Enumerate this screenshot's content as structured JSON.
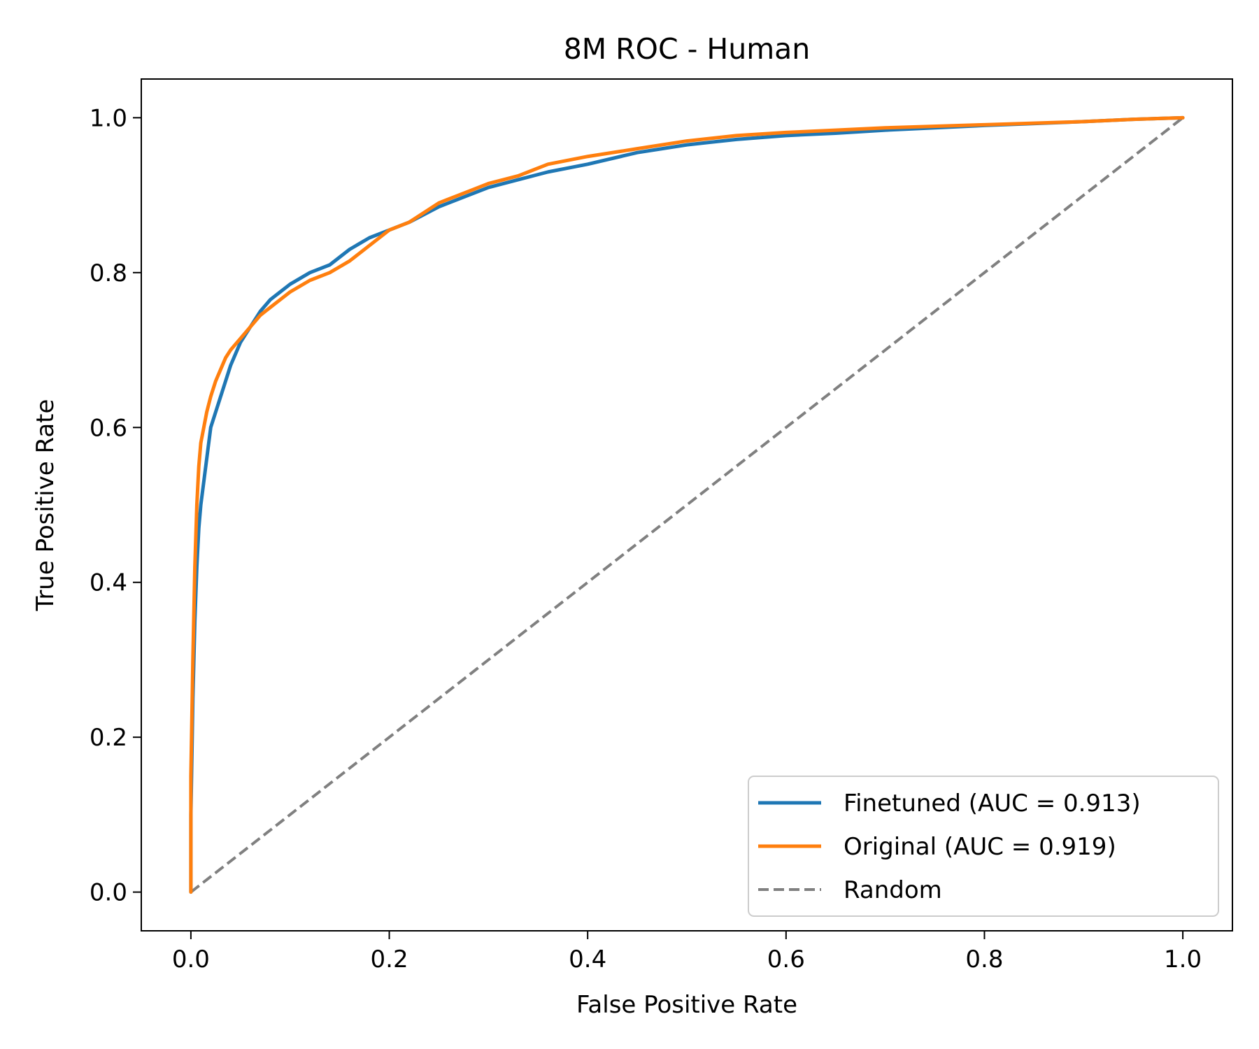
{
  "chart_data": {
    "type": "line",
    "title": "8M ROC - Human",
    "xlabel": "False Positive Rate",
    "ylabel": "True Positive Rate",
    "xlim": [
      -0.05,
      1.05
    ],
    "ylim": [
      -0.05,
      1.05
    ],
    "xticks": [
      0.0,
      0.2,
      0.4,
      0.6,
      0.8,
      1.0
    ],
    "yticks": [
      0.0,
      0.2,
      0.4,
      0.6,
      0.8,
      1.0
    ],
    "xtick_labels": [
      "0.0",
      "0.2",
      "0.4",
      "0.6",
      "0.8",
      "1.0"
    ],
    "ytick_labels": [
      "0.0",
      "0.2",
      "0.4",
      "0.6",
      "0.8",
      "1.0"
    ],
    "grid": false,
    "legend_position": "lower-right",
    "series": [
      {
        "name": "Finetuned (AUC = 0.913)",
        "color": "#1f77b4",
        "style": "solid",
        "x": [
          0.0,
          0.0,
          0.002,
          0.004,
          0.006,
          0.008,
          0.01,
          0.013,
          0.016,
          0.02,
          0.025,
          0.03,
          0.035,
          0.04,
          0.05,
          0.06,
          0.07,
          0.08,
          0.09,
          0.1,
          0.12,
          0.14,
          0.16,
          0.18,
          0.2,
          0.22,
          0.25,
          0.28,
          0.3,
          0.33,
          0.36,
          0.4,
          0.45,
          0.5,
          0.55,
          0.6,
          0.65,
          0.7,
          0.8,
          0.9,
          0.95,
          1.0
        ],
        "y": [
          0.0,
          0.1,
          0.25,
          0.35,
          0.42,
          0.47,
          0.5,
          0.53,
          0.56,
          0.6,
          0.62,
          0.64,
          0.66,
          0.68,
          0.71,
          0.73,
          0.75,
          0.765,
          0.775,
          0.785,
          0.8,
          0.81,
          0.83,
          0.845,
          0.855,
          0.865,
          0.885,
          0.9,
          0.91,
          0.92,
          0.93,
          0.94,
          0.955,
          0.965,
          0.972,
          0.977,
          0.98,
          0.984,
          0.99,
          0.995,
          0.998,
          1.0
        ]
      },
      {
        "name": "Original (AUC = 0.919)",
        "color": "#ff7f0e",
        "style": "solid",
        "x": [
          0.0,
          0.0,
          0.002,
          0.004,
          0.006,
          0.008,
          0.01,
          0.013,
          0.016,
          0.02,
          0.025,
          0.03,
          0.035,
          0.04,
          0.05,
          0.06,
          0.07,
          0.08,
          0.09,
          0.1,
          0.12,
          0.14,
          0.16,
          0.18,
          0.2,
          0.22,
          0.25,
          0.28,
          0.3,
          0.33,
          0.36,
          0.4,
          0.45,
          0.5,
          0.55,
          0.6,
          0.65,
          0.7,
          0.8,
          0.9,
          0.95,
          1.0
        ],
        "y": [
          0.0,
          0.15,
          0.3,
          0.42,
          0.5,
          0.55,
          0.58,
          0.6,
          0.62,
          0.64,
          0.66,
          0.675,
          0.69,
          0.7,
          0.715,
          0.73,
          0.745,
          0.755,
          0.765,
          0.775,
          0.79,
          0.8,
          0.815,
          0.835,
          0.855,
          0.865,
          0.89,
          0.905,
          0.915,
          0.925,
          0.94,
          0.95,
          0.96,
          0.97,
          0.977,
          0.981,
          0.984,
          0.987,
          0.991,
          0.995,
          0.998,
          1.0
        ]
      },
      {
        "name": "Random",
        "color": "#808080",
        "style": "dashed",
        "x": [
          0.0,
          1.0
        ],
        "y": [
          0.0,
          1.0
        ]
      }
    ]
  }
}
